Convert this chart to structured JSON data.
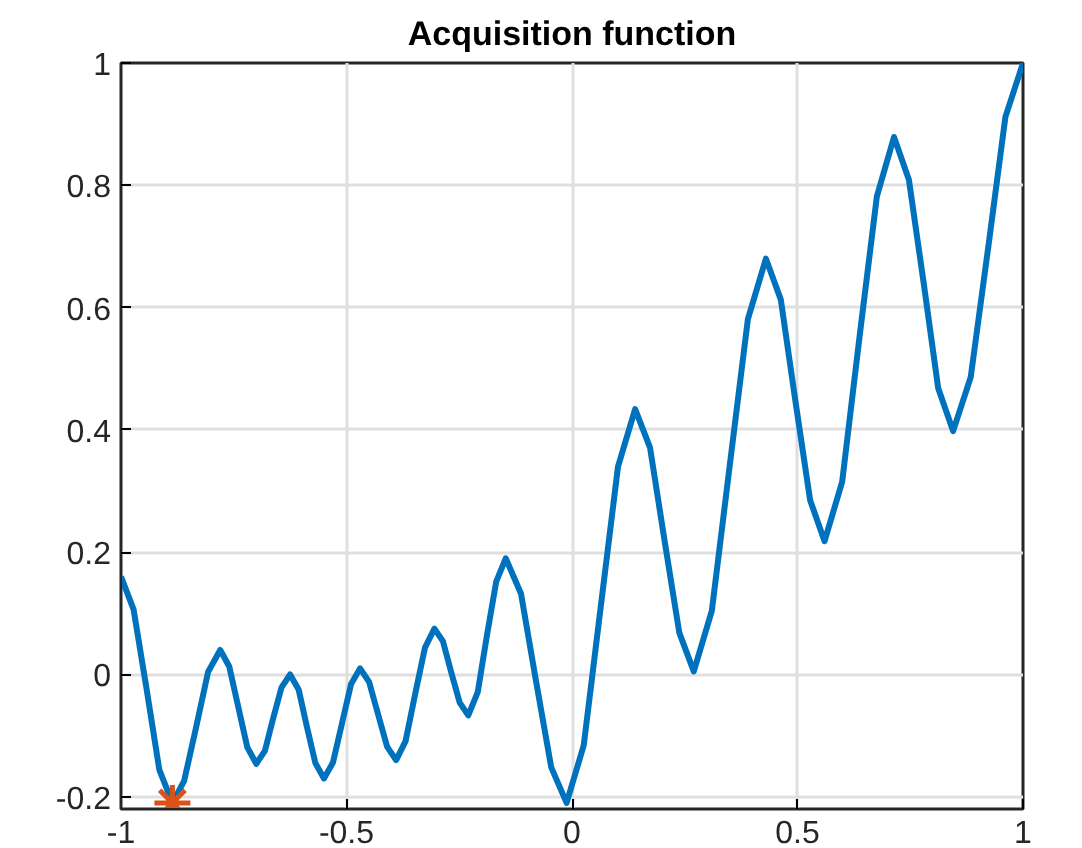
{
  "chart_data": {
    "type": "line",
    "title": "Acquisition function",
    "xlim": [
      -1,
      1
    ],
    "ylim": [
      -0.22,
      1
    ],
    "xticks": [
      -1,
      -0.5,
      0,
      0.5,
      1
    ],
    "yticks": [
      -0.2,
      0,
      0.2,
      0.4,
      0.6,
      0.8,
      1
    ],
    "grid": true,
    "line_style": "solid",
    "series": [
      {
        "type": "line",
        "color": "#0072bd",
        "marker": "none",
        "x": [
          -1,
          -0.972,
          -0.943,
          -0.915,
          -0.886,
          -0.86,
          -0.833,
          -0.807,
          -0.78,
          -0.76,
          -0.74,
          -0.72,
          -0.7,
          -0.681,
          -0.663,
          -0.644,
          -0.625,
          -0.606,
          -0.588,
          -0.569,
          -0.55,
          -0.53,
          -0.51,
          -0.49,
          -0.47,
          -0.45,
          -0.43,
          -0.41,
          -0.39,
          -0.369,
          -0.348,
          -0.326,
          -0.305,
          -0.286,
          -0.268,
          -0.249,
          -0.23,
          -0.209,
          -0.189,
          -0.168,
          -0.147,
          -0.113,
          -0.08,
          -0.046,
          -0.012,
          0.026,
          0.064,
          0.102,
          0.14,
          0.173,
          0.205,
          0.238,
          0.27,
          0.31,
          0.35,
          0.39,
          0.43,
          0.463,
          0.495,
          0.528,
          0.56,
          0.599,
          0.637,
          0.676,
          0.714,
          0.747,
          0.78,
          0.812,
          0.845,
          0.884,
          0.923,
          0.961,
          1
        ],
        "values": [
          0.16,
          0.106,
          -0.025,
          -0.156,
          -0.21,
          -0.174,
          -0.085,
          0.004,
          0.04,
          0.013,
          -0.053,
          -0.119,
          -0.146,
          -0.125,
          -0.073,
          -0.021,
          0.0,
          -0.025,
          -0.085,
          -0.145,
          -0.17,
          -0.144,
          -0.08,
          -0.016,
          0.01,
          -0.012,
          -0.065,
          -0.118,
          -0.14,
          -0.109,
          -0.033,
          0.044,
          0.075,
          0.054,
          0.004,
          -0.046,
          -0.067,
          -0.029,
          0.062,
          0.152,
          0.19,
          0.132,
          -0.01,
          -0.152,
          -0.21,
          -0.116,
          0.112,
          0.34,
          0.434,
          0.371,
          0.22,
          0.068,
          0.005,
          0.104,
          0.343,
          0.581,
          0.68,
          0.613,
          0.449,
          0.285,
          0.218,
          0.315,
          0.549,
          0.782,
          0.879,
          0.809,
          0.639,
          0.468,
          0.398,
          0.486,
          0.699,
          0.912,
          1.0
        ]
      },
      {
        "type": "scatter",
        "color": "#d95319",
        "marker": "cross",
        "x": [
          -0.886
        ],
        "values": [
          -0.21
        ]
      }
    ]
  }
}
